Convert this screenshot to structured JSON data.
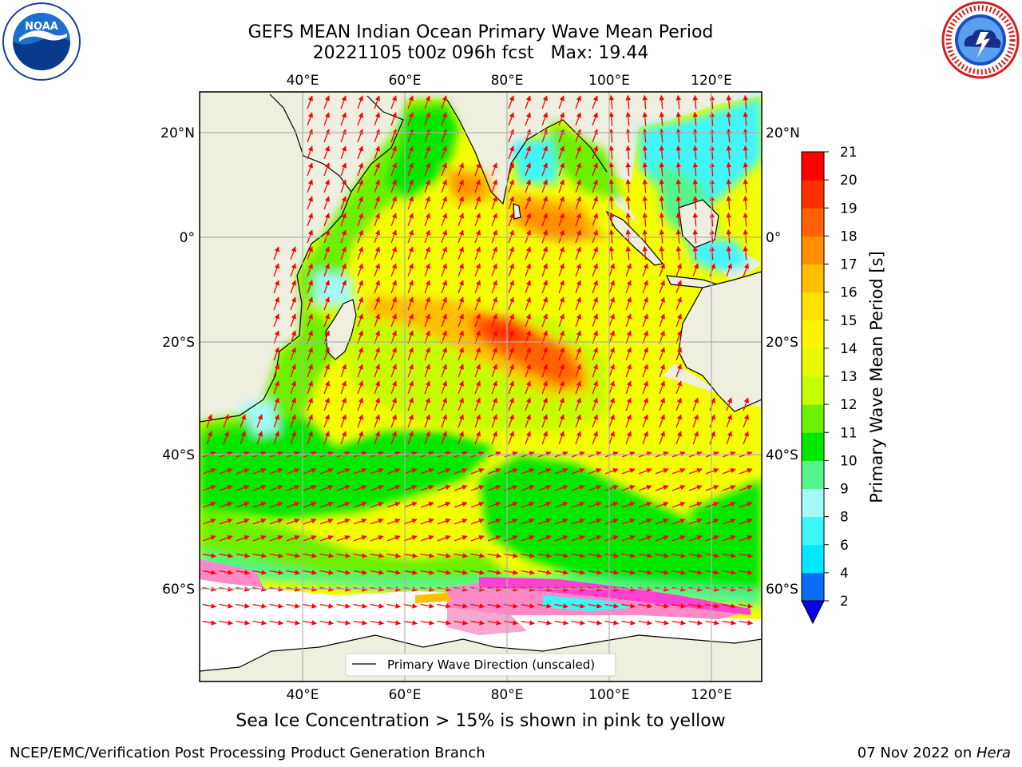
{
  "header": {
    "title_line1": "GEFS MEAN Indian Ocean Primary Wave Mean Period",
    "title_line2": "20221105 t00z 096h fcst   Max: 19.44"
  },
  "logos": {
    "left": {
      "icon": "noaa-logo-icon",
      "text": "NOAA"
    },
    "right": {
      "icon": "nws-logo-icon"
    }
  },
  "map": {
    "lon_ticks": [
      "40°E",
      "60°E",
      "80°E",
      "100°E",
      "120°E"
    ],
    "lat_ticks_left": [
      "20°N",
      "0°",
      "20°S",
      "40°S",
      "60°S"
    ],
    "lat_ticks_right": [
      "20°N",
      "0°",
      "20°S",
      "40°S",
      "60°S"
    ],
    "legend_label": "Primary Wave Direction (unscaled)",
    "colors": {
      "land": "#efefdf",
      "arrow": "#ff0000",
      "gridline": "#b0b0b0"
    }
  },
  "colorbar": {
    "label": "Primary Wave Mean Period [s]",
    "ticks": [
      "2",
      "4",
      "6",
      "8",
      "9",
      "10",
      "11",
      "12",
      "13",
      "14",
      "15",
      "16",
      "17",
      "18",
      "19",
      "20",
      "21"
    ],
    "colors": [
      "#0a6cf7",
      "#00e8ff",
      "#3ff6f7",
      "#a2fbf7",
      "#55f58c",
      "#00e800",
      "#6bf000",
      "#c6fc00",
      "#e8fa00",
      "#fff400",
      "#ffe100",
      "#ffbf00",
      "#ff8f00",
      "#ff6200",
      "#ff3000",
      "#ff0000"
    ],
    "extend_color": "#0a00e6"
  },
  "caption": "Sea Ice Concentration > 15% is shown in pink to yellow",
  "footer": {
    "left": "NCEP/EMC/Verification Post Processing Product Generation Branch",
    "right_date": "07 Nov 2022 on ",
    "right_host": "Hera"
  }
}
